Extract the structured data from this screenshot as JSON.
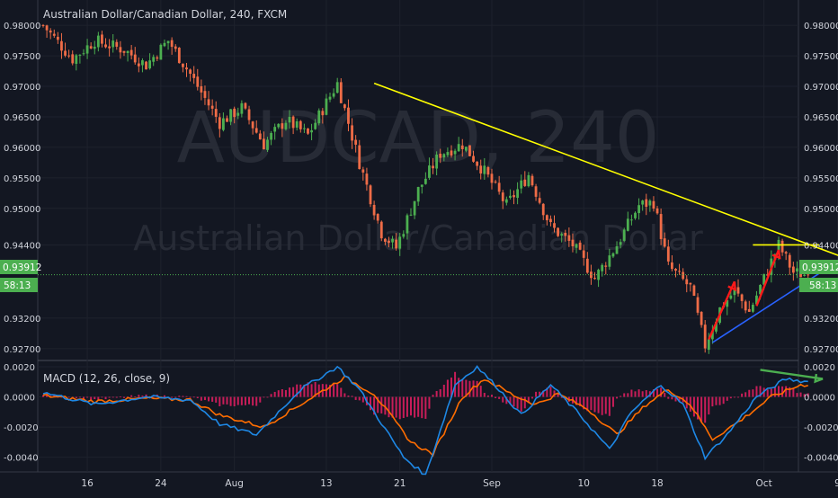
{
  "header": {
    "title": "Australian Dollar/Canadian Dollar, 240, FXCM",
    "watermark_symbol": "AUDCAD, 240",
    "watermark_name": "Australian Dollar/Canadian Dollar"
  },
  "price_axis": {
    "ticks": [
      "0.98000",
      "0.97500",
      "0.97000",
      "0.96500",
      "0.96000",
      "0.95500",
      "0.95000",
      "0.94400",
      "0.93200",
      "0.92700"
    ],
    "last_price": "0.93912",
    "countdown": "58:13"
  },
  "macd_axis": {
    "ticks": [
      "0.0020",
      "0.0000",
      "-0.0020",
      "-0.0040"
    ]
  },
  "indicator": {
    "label": "MACD (12, 26, close, 9)"
  },
  "time_axis": {
    "ticks": [
      "16",
      "24",
      "Aug",
      "13",
      "21",
      "Sep",
      "10",
      "18",
      "Oct",
      "9"
    ]
  },
  "colors": {
    "background": "#131722",
    "candle_up": "#4caf50",
    "candle_down": "#ef6c47",
    "resistance_line": "#ffff00",
    "support_line": "#2962ff",
    "arrow_red": "#ff1a1a",
    "arrow_green": "#4caf50",
    "macd_line": "#1e88e5",
    "signal_line": "#ff6d00",
    "histogram": "#e91e63",
    "last_price_line": "#4caf50"
  },
  "chart_data": {
    "type": "candlestick",
    "symbol": "AUDCAD",
    "timeframe": "240",
    "source": "FXCM",
    "ylim": [
      0.9255,
      0.9815
    ],
    "price_path": [
      [
        0,
        0.98
      ],
      [
        8,
        0.9745
      ],
      [
        14,
        0.9775
      ],
      [
        22,
        0.976
      ],
      [
        28,
        0.9735
      ],
      [
        34,
        0.9775
      ],
      [
        40,
        0.972
      ],
      [
        48,
        0.964
      ],
      [
        54,
        0.9665
      ],
      [
        60,
        0.9605
      ],
      [
        66,
        0.9645
      ],
      [
        72,
        0.962
      ],
      [
        80,
        0.9705
      ],
      [
        86,
        0.9575
      ],
      [
        92,
        0.946
      ],
      [
        96,
        0.9435
      ],
      [
        102,
        0.953
      ],
      [
        108,
        0.959
      ],
      [
        114,
        0.9605
      ],
      [
        120,
        0.956
      ],
      [
        126,
        0.9505
      ],
      [
        132,
        0.9555
      ],
      [
        138,
        0.947
      ],
      [
        144,
        0.944
      ],
      [
        150,
        0.9385
      ],
      [
        156,
        0.944
      ],
      [
        162,
        0.9505
      ],
      [
        166,
        0.951
      ],
      [
        170,
        0.9405
      ],
      [
        176,
        0.937
      ],
      [
        180,
        0.9275
      ],
      [
        184,
        0.9335
      ],
      [
        188,
        0.9365
      ],
      [
        192,
        0.933
      ],
      [
        196,
        0.9385
      ],
      [
        200,
        0.944
      ],
      [
        204,
        0.9395
      ],
      [
        208,
        0.9391
      ]
    ],
    "resistance_line": [
      [
        90,
        0.9705
      ],
      [
        260,
        0.9325
      ]
    ],
    "support_line": [
      [
        182,
        0.928
      ],
      [
        223,
        0.944
      ]
    ],
    "horizontal_level": [
      [
        193,
        0.944
      ],
      [
        211,
        0.944
      ]
    ],
    "macd": {
      "name": "MACD (12, 26, close, 9)",
      "ylim": [
        -0.0048,
        0.0023
      ],
      "macd_path": [
        [
          0,
          0.0003
        ],
        [
          14,
          -0.0005
        ],
        [
          28,
          0.0
        ],
        [
          40,
          -0.0002
        ],
        [
          48,
          -0.0018
        ],
        [
          58,
          -0.0025
        ],
        [
          70,
          0.0005
        ],
        [
          80,
          0.002
        ],
        [
          86,
          0.0005
        ],
        [
          98,
          -0.004
        ],
        [
          104,
          -0.0052
        ],
        [
          112,
          0.0008
        ],
        [
          118,
          0.002
        ],
        [
          124,
          0.0005
        ],
        [
          130,
          -0.0012
        ],
        [
          138,
          0.0008
        ],
        [
          146,
          -0.0012
        ],
        [
          154,
          -0.0035
        ],
        [
          160,
          -0.001
        ],
        [
          168,
          0.0008
        ],
        [
          174,
          -0.0005
        ],
        [
          180,
          -0.004
        ],
        [
          186,
          -0.0025
        ],
        [
          194,
          0.0
        ],
        [
          202,
          0.0012
        ],
        [
          208,
          0.001
        ]
      ],
      "signal_path": [
        [
          0,
          0.0001
        ],
        [
          14,
          -0.0003
        ],
        [
          28,
          -0.0001
        ],
        [
          40,
          -0.0002
        ],
        [
          48,
          -0.0012
        ],
        [
          60,
          -0.002
        ],
        [
          72,
          -0.0002
        ],
        [
          82,
          0.0013
        ],
        [
          90,
          0.0002
        ],
        [
          100,
          -0.003
        ],
        [
          106,
          -0.0038
        ],
        [
          114,
          0.0
        ],
        [
          120,
          0.0012
        ],
        [
          128,
          0.0001
        ],
        [
          134,
          -0.0005
        ],
        [
          140,
          0.0002
        ],
        [
          148,
          -0.0008
        ],
        [
          156,
          -0.0025
        ],
        [
          164,
          -0.0005
        ],
        [
          170,
          0.0005
        ],
        [
          176,
          -0.0005
        ],
        [
          182,
          -0.0028
        ],
        [
          190,
          -0.0015
        ],
        [
          198,
          0.0
        ],
        [
          206,
          0.0008
        ],
        [
          208,
          0.0008
        ]
      ]
    },
    "x_ticks": [
      {
        "label": "16",
        "index": 12
      },
      {
        "label": "24",
        "index": 32
      },
      {
        "label": "Aug",
        "index": 52
      },
      {
        "label": "13",
        "index": 77
      },
      {
        "label": "21",
        "index": 97
      },
      {
        "label": "Sep",
        "index": 122
      },
      {
        "label": "10",
        "index": 147
      },
      {
        "label": "18",
        "index": 167
      },
      {
        "label": "Oct",
        "index": 196
      },
      {
        "label": "9",
        "index": 216
      }
    ],
    "y_ticks": [
      0.98,
      0.975,
      0.97,
      0.965,
      0.96,
      0.955,
      0.95,
      0.944,
      0.932,
      0.927
    ],
    "macd_y_ticks": [
      0.002,
      0.0,
      -0.002,
      -0.004
    ],
    "last_price": 0.93912,
    "grid": true
  }
}
